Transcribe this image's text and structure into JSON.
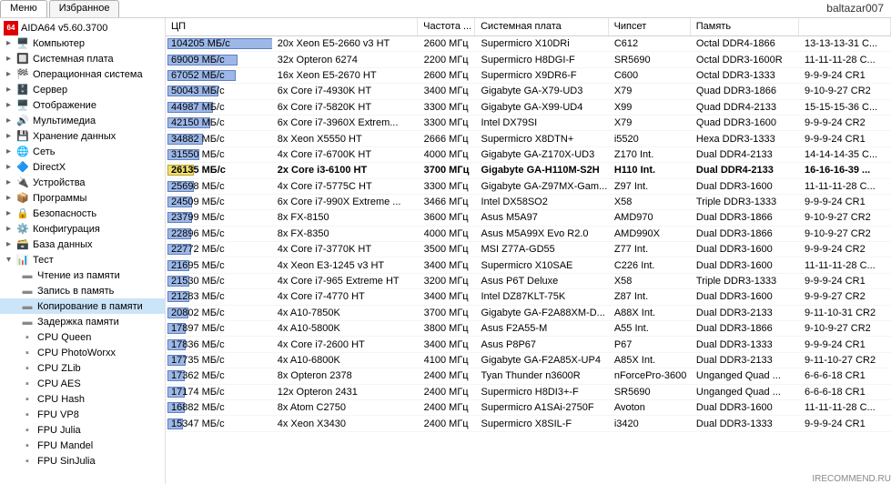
{
  "watermark": "baltazar007",
  "footer": "IRECOMMEND.RU",
  "tabs": {
    "menu": "Меню",
    "fav": "Избранное"
  },
  "tree": {
    "root": "AIDA64 v5.60.3700",
    "items": [
      {
        "label": "Компьютер",
        "icon": "🖥️",
        "exp": "▸"
      },
      {
        "label": "Системная плата",
        "icon": "🔲",
        "exp": "▸"
      },
      {
        "label": "Операционная система",
        "icon": "🏁",
        "exp": "▸"
      },
      {
        "label": "Сервер",
        "icon": "🗄️",
        "exp": "▸"
      },
      {
        "label": "Отображение",
        "icon": "🖥️",
        "exp": "▸"
      },
      {
        "label": "Мультимедиа",
        "icon": "🔊",
        "exp": "▸"
      },
      {
        "label": "Хранение данных",
        "icon": "💾",
        "exp": "▸"
      },
      {
        "label": "Сеть",
        "icon": "🌐",
        "exp": "▸"
      },
      {
        "label": "DirectX",
        "icon": "🔷",
        "exp": "▸"
      },
      {
        "label": "Устройства",
        "icon": "🔌",
        "exp": "▸"
      },
      {
        "label": "Программы",
        "icon": "📦",
        "exp": "▸"
      },
      {
        "label": "Безопасность",
        "icon": "🔒",
        "exp": "▸"
      },
      {
        "label": "Конфигурация",
        "icon": "⚙️",
        "exp": "▸"
      },
      {
        "label": "База данных",
        "icon": "🗃️",
        "exp": "▸"
      }
    ],
    "test": {
      "label": "Тест",
      "icon": "📊",
      "exp": "▾"
    },
    "subs": [
      {
        "label": "Чтение из памяти",
        "icon": "▬"
      },
      {
        "label": "Запись в память",
        "icon": "▬"
      },
      {
        "label": "Копирование в памяти",
        "icon": "▬",
        "selected": true
      },
      {
        "label": "Задержка памяти",
        "icon": "▬"
      },
      {
        "label": "CPU Queen",
        "icon": "▪"
      },
      {
        "label": "CPU PhotoWorxx",
        "icon": "▪"
      },
      {
        "label": "CPU ZLib",
        "icon": "▪"
      },
      {
        "label": "CPU AES",
        "icon": "▪"
      },
      {
        "label": "CPU Hash",
        "icon": "▪"
      },
      {
        "label": "FPU VP8",
        "icon": "▪"
      },
      {
        "label": "FPU Julia",
        "icon": "▪"
      },
      {
        "label": "FPU Mandel",
        "icon": "▪"
      },
      {
        "label": "FPU SinJulia",
        "icon": "▪"
      }
    ]
  },
  "columns": [
    "ЦП",
    "",
    "Частота ...",
    "Системная плата",
    "Чипсет",
    "Память",
    ""
  ],
  "maxBar": 104205,
  "rows": [
    {
      "bar": 104205,
      "mbs": "104205 МБ/с",
      "cpu": "20x Xeon E5-2660 v3 HT",
      "freq": "2600 МГц",
      "mb": "Supermicro X10DRi",
      "chip": "C612",
      "mem": "Octal DDR4-1866",
      "tm": "13-13-13-31 C..."
    },
    {
      "bar": 69009,
      "mbs": "69009 МБ/с",
      "cpu": "32x Opteron 6274",
      "freq": "2200 МГц",
      "mb": "Supermicro H8DGI-F",
      "chip": "SR5690",
      "mem": "Octal DDR3-1600R",
      "tm": "11-11-11-28 C..."
    },
    {
      "bar": 67052,
      "mbs": "67052 МБ/с",
      "cpu": "16x Xeon E5-2670 HT",
      "freq": "2600 МГц",
      "mb": "Supermicro X9DR6-F",
      "chip": "C600",
      "mem": "Octal DDR3-1333",
      "tm": "9-9-9-24 CR1"
    },
    {
      "bar": 50043,
      "mbs": "50043 МБ/с",
      "cpu": "6x Core i7-4930K HT",
      "freq": "3400 МГц",
      "mb": "Gigabyte GA-X79-UD3",
      "chip": "X79",
      "mem": "Quad DDR3-1866",
      "tm": "9-10-9-27 CR2"
    },
    {
      "bar": 44987,
      "mbs": "44987 МБ/с",
      "cpu": "6x Core i7-5820K HT",
      "freq": "3300 МГц",
      "mb": "Gigabyte GA-X99-UD4",
      "chip": "X99",
      "mem": "Quad DDR4-2133",
      "tm": "15-15-15-36 C..."
    },
    {
      "bar": 42150,
      "mbs": "42150 МБ/с",
      "cpu": "6x Core i7-3960X Extrem...",
      "freq": "3300 МГц",
      "mb": "Intel DX79SI",
      "chip": "X79",
      "mem": "Quad DDR3-1600",
      "tm": "9-9-9-24 CR2"
    },
    {
      "bar": 34882,
      "mbs": "34882 МБ/с",
      "cpu": "8x Xeon X5550 HT",
      "freq": "2666 МГц",
      "mb": "Supermicro X8DTN+",
      "chip": "i5520",
      "mem": "Hexa DDR3-1333",
      "tm": "9-9-9-24 CR1"
    },
    {
      "bar": 31550,
      "mbs": "31550 МБ/с",
      "cpu": "4x Core i7-6700K HT",
      "freq": "4000 МГц",
      "mb": "Gigabyte GA-Z170X-UD3",
      "chip": "Z170 Int.",
      "mem": "Dual DDR4-2133",
      "tm": "14-14-14-35 C..."
    },
    {
      "bar": 26135,
      "mbs": "26135 МБ/с",
      "cpu": "2x Core i3-6100 HT",
      "freq": "3700 МГц",
      "mb": "Gigabyte GA-H110M-S2H",
      "chip": "H110 Int.",
      "mem": "Dual DDR4-2133",
      "tm": "16-16-16-39 ...",
      "hl": true
    },
    {
      "bar": 25698,
      "mbs": "25698 МБ/с",
      "cpu": "4x Core i7-5775C HT",
      "freq": "3300 МГц",
      "mb": "Gigabyte GA-Z97MX-Gam...",
      "chip": "Z97 Int.",
      "mem": "Dual DDR3-1600",
      "tm": "11-11-11-28 C..."
    },
    {
      "bar": 24509,
      "mbs": "24509 МБ/с",
      "cpu": "6x Core i7-990X Extreme ...",
      "freq": "3466 МГц",
      "mb": "Intel DX58SO2",
      "chip": "X58",
      "mem": "Triple DDR3-1333",
      "tm": "9-9-9-24 CR1"
    },
    {
      "bar": 23799,
      "mbs": "23799 МБ/с",
      "cpu": "8x FX-8150",
      "freq": "3600 МГц",
      "mb": "Asus M5A97",
      "chip": "AMD970",
      "mem": "Dual DDR3-1866",
      "tm": "9-10-9-27 CR2"
    },
    {
      "bar": 22896,
      "mbs": "22896 МБ/с",
      "cpu": "8x FX-8350",
      "freq": "4000 МГц",
      "mb": "Asus M5A99X Evo R2.0",
      "chip": "AMD990X",
      "mem": "Dual DDR3-1866",
      "tm": "9-10-9-27 CR2"
    },
    {
      "bar": 22772,
      "mbs": "22772 МБ/с",
      "cpu": "4x Core i7-3770K HT",
      "freq": "3500 МГц",
      "mb": "MSI Z77A-GD55",
      "chip": "Z77 Int.",
      "mem": "Dual DDR3-1600",
      "tm": "9-9-9-24 CR2"
    },
    {
      "bar": 21695,
      "mbs": "21695 МБ/с",
      "cpu": "4x Xeon E3-1245 v3 HT",
      "freq": "3400 МГц",
      "mb": "Supermicro X10SAE",
      "chip": "C226 Int.",
      "mem": "Dual DDR3-1600",
      "tm": "11-11-11-28 C..."
    },
    {
      "bar": 21530,
      "mbs": "21530 МБ/с",
      "cpu": "4x Core i7-965 Extreme HT",
      "freq": "3200 МГц",
      "mb": "Asus P6T Deluxe",
      "chip": "X58",
      "mem": "Triple DDR3-1333",
      "tm": "9-9-9-24 CR1"
    },
    {
      "bar": 21283,
      "mbs": "21283 МБ/с",
      "cpu": "4x Core i7-4770 HT",
      "freq": "3400 МГц",
      "mb": "Intel DZ87KLT-75K",
      "chip": "Z87 Int.",
      "mem": "Dual DDR3-1600",
      "tm": "9-9-9-27 CR2"
    },
    {
      "bar": 20802,
      "mbs": "20802 МБ/с",
      "cpu": "4x A10-7850K",
      "freq": "3700 МГц",
      "mb": "Gigabyte GA-F2A88XM-D...",
      "chip": "A88X Int.",
      "mem": "Dual DDR3-2133",
      "tm": "9-11-10-31 CR2"
    },
    {
      "bar": 17897,
      "mbs": "17897 МБ/с",
      "cpu": "4x A10-5800K",
      "freq": "3800 МГц",
      "mb": "Asus F2A55-M",
      "chip": "A55 Int.",
      "mem": "Dual DDR3-1866",
      "tm": "9-10-9-27 CR2"
    },
    {
      "bar": 17836,
      "mbs": "17836 МБ/с",
      "cpu": "4x Core i7-2600 HT",
      "freq": "3400 МГц",
      "mb": "Asus P8P67",
      "chip": "P67",
      "mem": "Dual DDR3-1333",
      "tm": "9-9-9-24 CR1"
    },
    {
      "bar": 17735,
      "mbs": "17735 МБ/с",
      "cpu": "4x A10-6800K",
      "freq": "4100 МГц",
      "mb": "Gigabyte GA-F2A85X-UP4",
      "chip": "A85X Int.",
      "mem": "Dual DDR3-2133",
      "tm": "9-11-10-27 CR2"
    },
    {
      "bar": 17362,
      "mbs": "17362 МБ/с",
      "cpu": "8x Opteron 2378",
      "freq": "2400 МГц",
      "mb": "Tyan Thunder n3600R",
      "chip": "nForcePro-3600",
      "mem": "Unganged Quad ...",
      "tm": "6-6-6-18 CR1"
    },
    {
      "bar": 17174,
      "mbs": "17174 МБ/с",
      "cpu": "12x Opteron 2431",
      "freq": "2400 МГц",
      "mb": "Supermicro H8DI3+-F",
      "chip": "SR5690",
      "mem": "Unganged Quad ...",
      "tm": "6-6-6-18 CR1"
    },
    {
      "bar": 16882,
      "mbs": "16882 МБ/с",
      "cpu": "8x Atom C2750",
      "freq": "2400 МГц",
      "mb": "Supermicro A1SAi-2750F",
      "chip": "Avoton",
      "mem": "Dual DDR3-1600",
      "tm": "11-11-11-28 C..."
    },
    {
      "bar": 15347,
      "mbs": "15347 МБ/с",
      "cpu": "4x Xeon X3430",
      "freq": "2400 МГц",
      "mb": "Supermicro X8SIL-F",
      "chip": "i3420",
      "mem": "Dual DDR3-1333",
      "tm": "9-9-9-24 CR1"
    }
  ]
}
